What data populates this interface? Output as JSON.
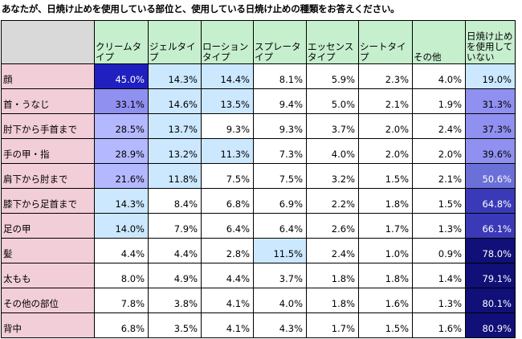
{
  "title": "あなたが、日焼け止めを使用している部位と、使用している日焼け止めの種類をお答えください。",
  "chart_data": {
    "type": "heatmap",
    "columns": [
      "クリームタイプ",
      "ジェルタイプ",
      "ローションタイプ",
      "スプレータイプ",
      "エッセンスタイプ",
      "シートタイプ",
      "その他",
      "日焼け止めを使用していない"
    ],
    "rows": [
      {
        "label": "顔",
        "values": [
          45.0,
          14.3,
          14.4,
          8.1,
          5.9,
          2.3,
          4.0,
          19.0
        ]
      },
      {
        "label": "首・うなじ",
        "values": [
          33.1,
          14.6,
          13.5,
          9.4,
          5.0,
          2.1,
          1.9,
          31.3
        ]
      },
      {
        "label": "肘下から手首まで",
        "values": [
          28.5,
          13.7,
          9.3,
          9.3,
          3.7,
          2.0,
          2.4,
          37.3
        ]
      },
      {
        "label": "手の甲・指",
        "values": [
          28.9,
          13.2,
          11.3,
          7.3,
          4.0,
          2.0,
          2.0,
          39.6
        ]
      },
      {
        "label": "肩下から肘まで",
        "values": [
          21.6,
          11.8,
          7.5,
          7.5,
          3.2,
          1.5,
          2.1,
          50.6
        ]
      },
      {
        "label": "膝下から足首まで",
        "values": [
          14.3,
          8.4,
          6.8,
          6.9,
          2.2,
          1.8,
          1.5,
          64.8
        ]
      },
      {
        "label": "足の甲",
        "values": [
          14.0,
          7.9,
          6.4,
          6.4,
          2.6,
          1.7,
          1.3,
          66.1
        ]
      },
      {
        "label": "髪",
        "values": [
          4.4,
          4.4,
          2.8,
          11.5,
          2.4,
          1.0,
          0.9,
          78.0
        ]
      },
      {
        "label": "太もも",
        "values": [
          8.0,
          4.9,
          4.4,
          3.7,
          1.8,
          1.8,
          1.4,
          79.1
        ]
      },
      {
        "label": "その他の部位",
        "values": [
          7.8,
          3.8,
          4.1,
          4.0,
          1.8,
          1.6,
          1.3,
          80.1
        ]
      },
      {
        "label": "背中",
        "values": [
          6.8,
          3.5,
          4.1,
          4.3,
          1.7,
          1.5,
          1.6,
          80.9
        ]
      }
    ],
    "unit": "%",
    "colors": {
      "header_bg": "#c6efce",
      "corner_bg": "#d9d9d9",
      "row_label_bg": "#f2ced8",
      "level_light": "#cce8ff",
      "level_medium": "#b4b8ff",
      "level_strong": "#9090f0",
      "level_dark": "#6b6fd8",
      "level_darker": "#3a3ab8",
      "level_darkest": "#101078"
    }
  }
}
